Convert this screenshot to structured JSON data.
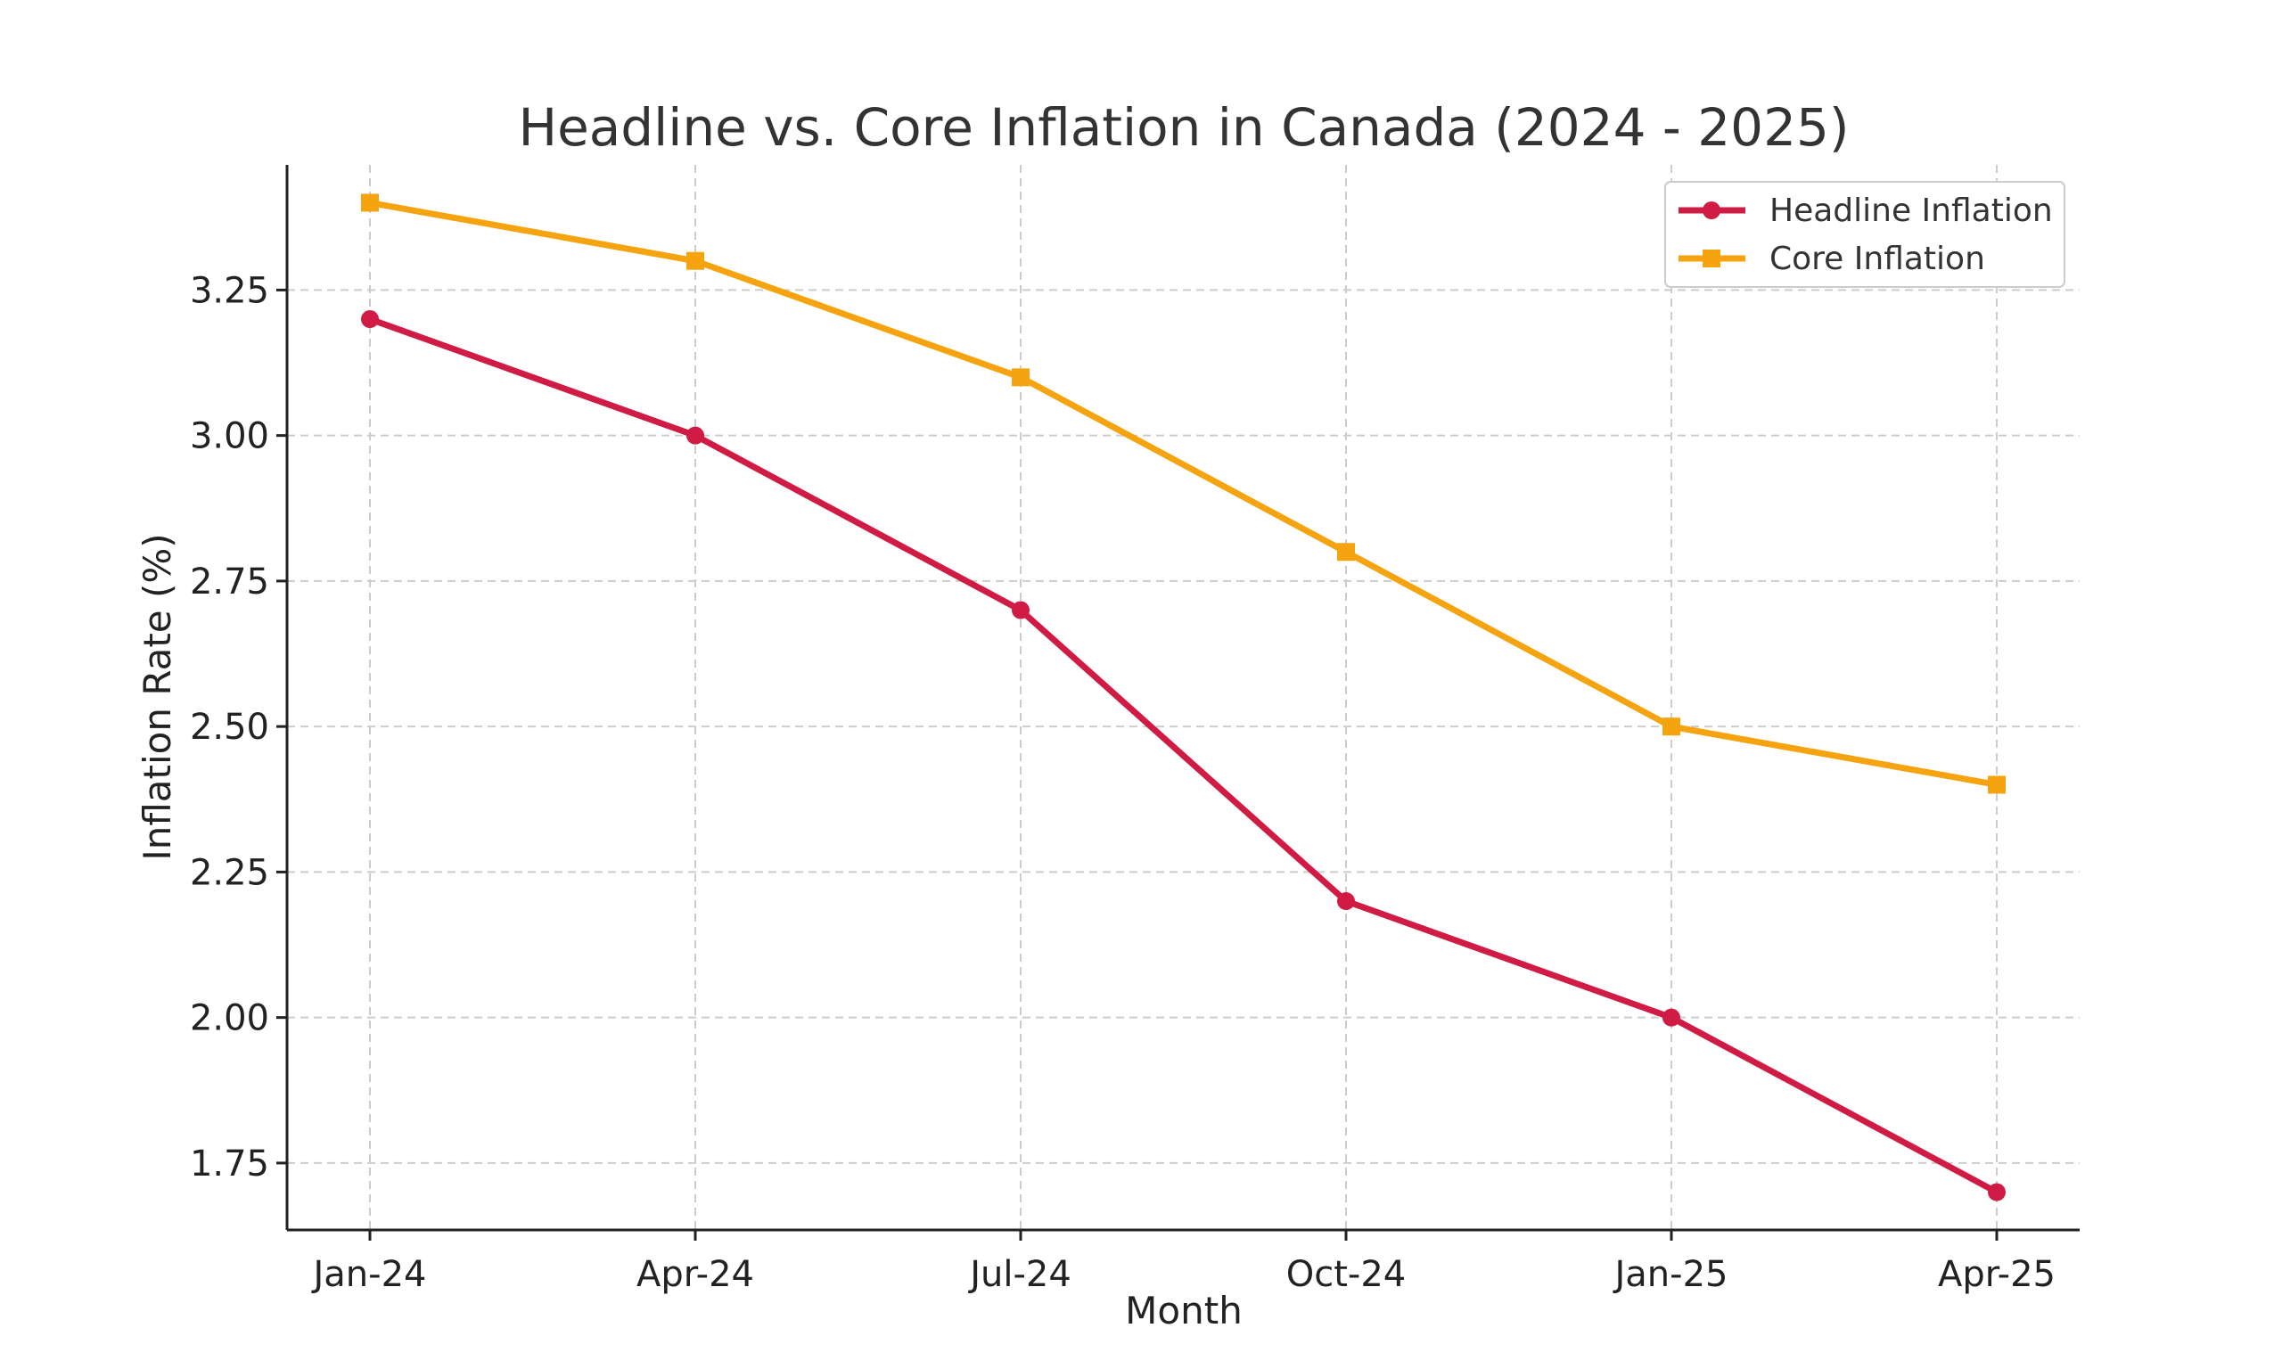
{
  "chart_data": {
    "type": "line",
    "title": "Headline vs. Core Inflation in Canada (2024 - 2025)",
    "xlabel": "Month",
    "ylabel": "Inflation Rate (%)",
    "categories": [
      "Jan-24",
      "Apr-24",
      "Jul-24",
      "Oct-24",
      "Jan-25",
      "Apr-25"
    ],
    "series": [
      {
        "name": "Headline Inflation",
        "values": [
          3.2,
          3.0,
          2.7,
          2.2,
          2.0,
          1.7
        ],
        "color": "#d01c44",
        "marker": "circle"
      },
      {
        "name": "Core Inflation",
        "values": [
          3.4,
          3.3,
          3.1,
          2.8,
          2.5,
          2.4
        ],
        "color": "#f5a30f",
        "marker": "square"
      }
    ],
    "ylim": [
      1.635,
      3.465
    ],
    "yticks": [
      "1.75",
      "2.00",
      "2.25",
      "2.50",
      "2.75",
      "3.00",
      "3.25"
    ],
    "grid": true,
    "legend_position": "top-right"
  }
}
